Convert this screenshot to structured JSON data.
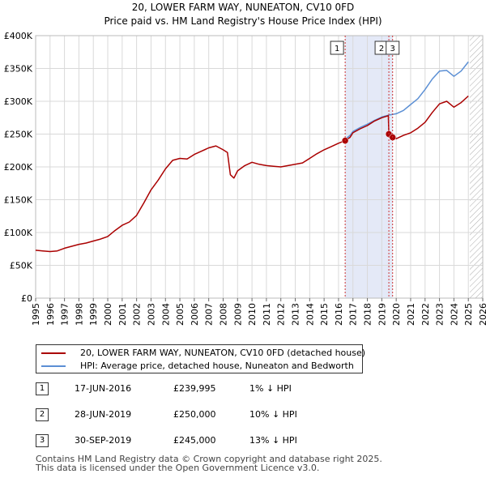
{
  "title": {
    "line1": "20, LOWER FARM WAY, NUNEATON, CV10 0FD",
    "line2": "Price paid vs. HM Land Registry's House Price Index (HPI)"
  },
  "colors": {
    "property": "#aa0000",
    "hpi": "#5b8fd4",
    "shade": "#dde4f5",
    "marker_line": "#cc3333",
    "hatch": "#999999"
  },
  "chart_data": {
    "type": "line",
    "ylim": [
      0,
      400000
    ],
    "xlim": [
      1995,
      2026
    ],
    "y_ticks": [
      {
        "value": 0,
        "label": "£0"
      },
      {
        "value": 50000,
        "label": "£50K"
      },
      {
        "value": 100000,
        "label": "£100K"
      },
      {
        "value": 150000,
        "label": "£150K"
      },
      {
        "value": 200000,
        "label": "£200K"
      },
      {
        "value": 250000,
        "label": "£250K"
      },
      {
        "value": 300000,
        "label": "£300K"
      },
      {
        "value": 350000,
        "label": "£350K"
      },
      {
        "value": 400000,
        "label": "£400K"
      }
    ],
    "x_ticks": [
      "1995",
      "1996",
      "1997",
      "1998",
      "1999",
      "2000",
      "2001",
      "2002",
      "2003",
      "2004",
      "2005",
      "2006",
      "2007",
      "2008",
      "2009",
      "2010",
      "2011",
      "2012",
      "2013",
      "2014",
      "2015",
      "2016",
      "2017",
      "2018",
      "2019",
      "2020",
      "2021",
      "2022",
      "2023",
      "2024",
      "2025",
      "2026"
    ],
    "grid": true,
    "shaded_region": [
      2016.46,
      2019.75
    ],
    "hatched_from": 2025.1,
    "series": [
      {
        "name": "20, LOWER FARM WAY, NUNEATON, CV10 0FD (detached house)",
        "x": [
          1995.0,
          1995.5,
          1996.0,
          1996.5,
          1997.0,
          1997.5,
          1998.0,
          1998.5,
          1999.0,
          1999.5,
          2000.0,
          2000.5,
          2001.0,
          2001.5,
          2002.0,
          2002.5,
          2003.0,
          2003.5,
          2004.0,
          2004.5,
          2005.0,
          2005.5,
          2006.0,
          2006.5,
          2007.0,
          2007.5,
          2008.0,
          2008.3,
          2008.5,
          2008.75,
          2009.0,
          2009.5,
          2010.0,
          2010.5,
          2011.0,
          2011.5,
          2012.0,
          2012.5,
          2013.0,
          2013.5,
          2014.0,
          2014.5,
          2015.0,
          2015.5,
          2016.0,
          2016.46,
          2016.8,
          2017.0,
          2017.5,
          2018.0,
          2018.5,
          2019.0,
          2019.45,
          2019.49,
          2019.6,
          2019.75,
          2020.0,
          2020.5,
          2021.0,
          2021.5,
          2022.0,
          2022.5,
          2023.0,
          2023.5,
          2024.0,
          2024.5,
          2025.0
        ],
        "values": [
          73000,
          72000,
          71000,
          72000,
          76000,
          79000,
          82000,
          84000,
          87000,
          90000,
          94000,
          103000,
          111000,
          116000,
          126000,
          145000,
          165000,
          180000,
          197000,
          210000,
          213000,
          212000,
          219000,
          224000,
          229000,
          232000,
          226000,
          222000,
          188000,
          183000,
          194000,
          202000,
          207000,
          204000,
          202000,
          201000,
          200000,
          202000,
          204000,
          206000,
          213000,
          220000,
          226000,
          231000,
          236000,
          239995,
          245000,
          252000,
          258000,
          263000,
          270000,
          275000,
          278000,
          250000,
          247000,
          245000,
          243000,
          248000,
          252000,
          259000,
          268000,
          283000,
          296000,
          300000,
          291000,
          298000,
          308000
        ]
      },
      {
        "name": "HPI: Average price, detached house, Nuneaton and Bedworth",
        "x": [
          2016.46,
          2016.8,
          2017.0,
          2017.5,
          2018.0,
          2018.5,
          2019.0,
          2019.5,
          2020.0,
          2020.5,
          2021.0,
          2021.5,
          2022.0,
          2022.5,
          2023.0,
          2023.5,
          2024.0,
          2024.5,
          2025.0
        ],
        "values": [
          242000,
          248000,
          254000,
          260000,
          265000,
          271000,
          276000,
          279000,
          281000,
          286000,
          295000,
          304000,
          318000,
          334000,
          346000,
          347000,
          338000,
          346000,
          360000
        ]
      }
    ],
    "transactions": [
      {
        "num": "1",
        "date": "17-JUN-2016",
        "x": 2016.46,
        "price_value": 239995,
        "price": "£239,995",
        "hpi": "1% ↓ HPI"
      },
      {
        "num": "2",
        "date": "28-JUN-2019",
        "x": 2019.49,
        "price_value": 250000,
        "price": "£250,000",
        "hpi": "10% ↓ HPI"
      },
      {
        "num": "3",
        "date": "30-SEP-2019",
        "x": 2019.75,
        "price_value": 245000,
        "price": "£245,000",
        "hpi": "13% ↓ HPI"
      }
    ]
  },
  "legend": {
    "property_label": "20, LOWER FARM WAY, NUNEATON, CV10 0FD (detached house)",
    "hpi_label": "HPI: Average price, detached house, Nuneaton and Bedworth"
  },
  "footer": {
    "line1": "Contains HM Land Registry data © Crown copyright and database right 2025.",
    "line2": "This data is licensed under the Open Government Licence v3.0."
  }
}
